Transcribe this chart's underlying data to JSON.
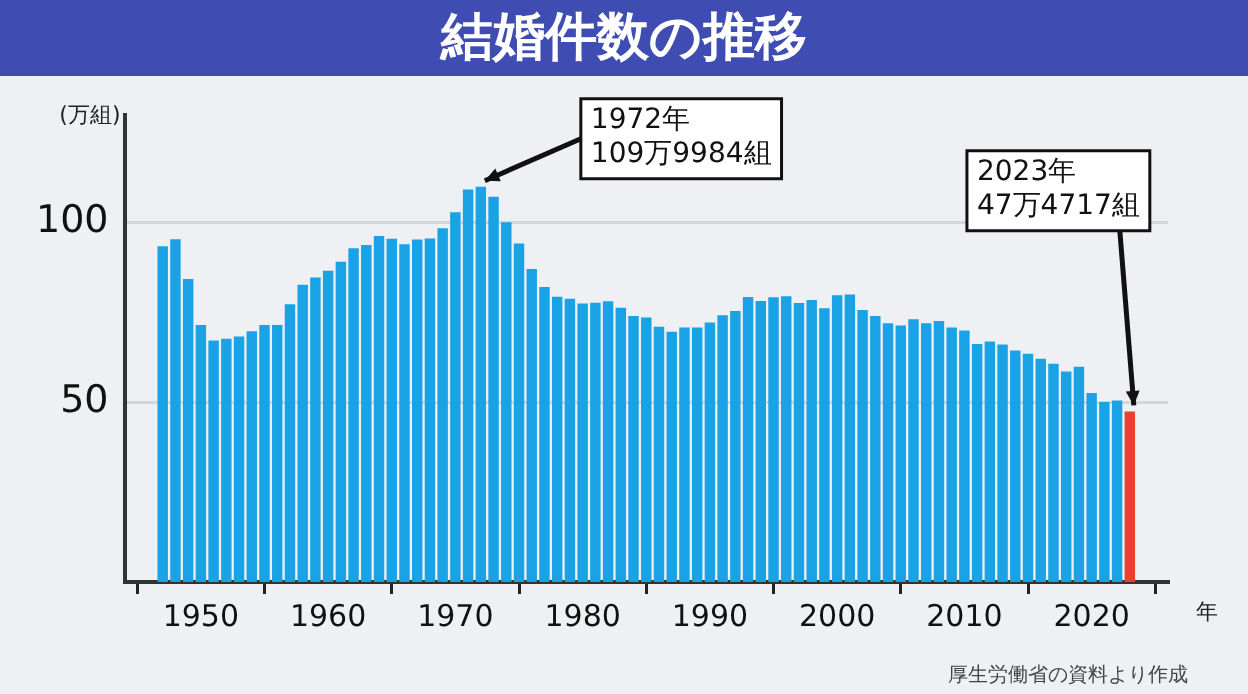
{
  "chart_data": {
    "type": "bar",
    "title": "結婚件数の推移",
    "ylabel": "(万組)",
    "xlabel": "年",
    "x": [
      1947,
      1948,
      1949,
      1950,
      1951,
      1952,
      1953,
      1954,
      1955,
      1956,
      1957,
      1958,
      1959,
      1960,
      1961,
      1962,
      1963,
      1964,
      1965,
      1966,
      1967,
      1968,
      1969,
      1970,
      1971,
      1972,
      1973,
      1974,
      1975,
      1976,
      1977,
      1978,
      1979,
      1980,
      1981,
      1982,
      1983,
      1984,
      1985,
      1986,
      1987,
      1988,
      1989,
      1990,
      1991,
      1992,
      1993,
      1994,
      1995,
      1996,
      1997,
      1998,
      1999,
      2000,
      2001,
      2002,
      2003,
      2004,
      2005,
      2006,
      2007,
      2008,
      2009,
      2010,
      2011,
      2012,
      2013,
      2014,
      2015,
      2016,
      2017,
      2018,
      2019,
      2020,
      2021,
      2022,
      2023
    ],
    "values": [
      93.4,
      95.4,
      84.3,
      71.5,
      67.2,
      67.7,
      68.3,
      69.8,
      71.5,
      71.5,
      77.3,
      82.7,
      84.7,
      86.6,
      89.1,
      92.9,
      93.8,
      96.3,
      95.5,
      94.0,
      95.3,
      95.6,
      98.4,
      102.9,
      109.2,
      109.9984,
      107.2,
      100.1,
      94.2,
      87.1,
      82.1,
      79.4,
      78.8,
      77.5,
      77.7,
      78.1,
      76.3,
      74.0,
      73.6,
      71.0,
      69.6,
      70.8,
      70.8,
      72.2,
      74.2,
      75.4,
      79.3,
      78.2,
      79.2,
      79.5,
      77.6,
      78.5,
      76.2,
      79.8,
      80.0,
      75.7,
      74.0,
      72.0,
      71.4,
      73.1,
      72.0,
      72.6,
      70.8,
      70.0,
      66.2,
      66.9,
      66.1,
      64.4,
      63.5,
      62.1,
      60.7,
      58.6,
      59.9,
      52.6,
      50.1,
      50.5,
      47.4717
    ],
    "colors": [
      "#19a3e6",
      "#19a3e6",
      "#19a3e6",
      "#19a3e6",
      "#19a3e6",
      "#19a3e6",
      "#19a3e6",
      "#19a3e6",
      "#19a3e6",
      "#19a3e6",
      "#19a3e6",
      "#19a3e6",
      "#19a3e6",
      "#19a3e6",
      "#19a3e6",
      "#19a3e6",
      "#19a3e6",
      "#19a3e6",
      "#19a3e6",
      "#19a3e6",
      "#19a3e6",
      "#19a3e6",
      "#19a3e6",
      "#19a3e6",
      "#19a3e6",
      "#19a3e6",
      "#19a3e6",
      "#19a3e6",
      "#19a3e6",
      "#19a3e6",
      "#19a3e6",
      "#19a3e6",
      "#19a3e6",
      "#19a3e6",
      "#19a3e6",
      "#19a3e6",
      "#19a3e6",
      "#19a3e6",
      "#19a3e6",
      "#19a3e6",
      "#19a3e6",
      "#19a3e6",
      "#19a3e6",
      "#19a3e6",
      "#19a3e6",
      "#19a3e6",
      "#19a3e6",
      "#19a3e6",
      "#19a3e6",
      "#19a3e6",
      "#19a3e6",
      "#19a3e6",
      "#19a3e6",
      "#19a3e6",
      "#19a3e6",
      "#19a3e6",
      "#19a3e6",
      "#19a3e6",
      "#19a3e6",
      "#19a3e6",
      "#19a3e6",
      "#19a3e6",
      "#19a3e6",
      "#19a3e6",
      "#19a3e6",
      "#19a3e6",
      "#19a3e6",
      "#19a3e6",
      "#19a3e6",
      "#19a3e6",
      "#19a3e6",
      "#19a3e6",
      "#19a3e6",
      "#19a3e6",
      "#19a3e6",
      "#19a3e6",
      "#e8412f"
    ],
    "xlim": [
      1944,
      2026
    ],
    "xticks": [
      1950,
      1960,
      1970,
      1980,
      1990,
      2000,
      2010,
      2020
    ],
    "ylim": [
      0,
      130
    ],
    "yticks": [
      50,
      100
    ],
    "grid": "y",
    "legend": false,
    "annotations": [
      {
        "text": "1972年\n109万9984組",
        "x": 1972,
        "y": 109.9984
      },
      {
        "text": "2023年\n47万4717組",
        "x": 2023,
        "y": 47.4717
      },
      "厚生労働省の資料より作成"
    ]
  }
}
